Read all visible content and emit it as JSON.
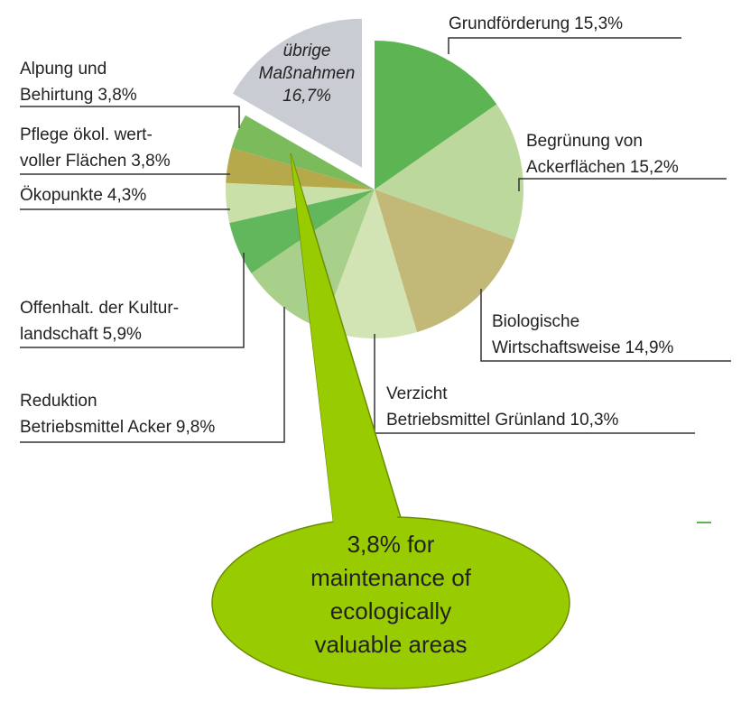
{
  "chart_data": {
    "type": "pie",
    "categories": [
      [
        "Grundförderung"
      ],
      [
        "Begrünung von",
        "Ackerflächen"
      ],
      [
        "Biologische",
        "Wirtschaftsweise"
      ],
      [
        "Verzicht",
        "Betriebsmittel Grünland"
      ],
      [
        "Reduktion",
        "Betriebsmittel Acker"
      ],
      [
        "Offenhalt. der Kultur-",
        "landschaft"
      ],
      [
        "Ökopunkte"
      ],
      [
        "Pflege ökol. wert-",
        "voller Flächen"
      ],
      [
        "Alpung und",
        "Behirtung"
      ],
      [
        "übrige",
        "Maßnahmen"
      ]
    ],
    "values": [
      15.3,
      15.2,
      14.9,
      10.3,
      9.8,
      5.9,
      4.3,
      3.8,
      3.8,
      16.7
    ],
    "value_labels": [
      "15,3%",
      "15,2%",
      "14,9%",
      "10,3%",
      "9,8%",
      "5,9%",
      "4,3%",
      "3,8%",
      "3,8%",
      "16,7%"
    ],
    "colors": [
      "#5cb552",
      "#bdd89c",
      "#c2b877",
      "#d3e4b4",
      "#a9d08b",
      "#62b65b",
      "#c9e0a8",
      "#b6a94c",
      "#7cbb5b",
      "#c9ccd2"
    ],
    "annotation": [
      "3,8% for",
      "maintenance of",
      "ecologically",
      "valuable areas"
    ]
  }
}
